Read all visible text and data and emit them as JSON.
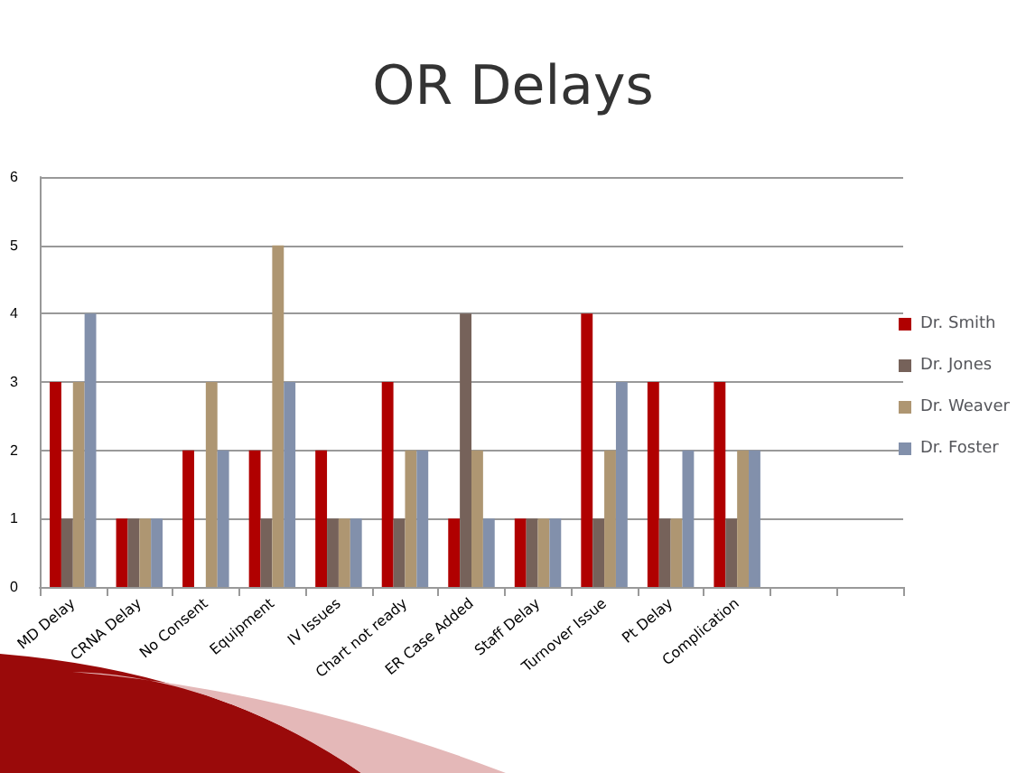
{
  "chart_data": {
    "type": "bar",
    "title": "OR Delays",
    "categories": [
      "MD Delay",
      "CRNA Delay",
      "No Consent",
      "Equipment",
      "IV Issues",
      "Chart not ready",
      "ER Case Added",
      "Staff Delay",
      "Turnover Issue",
      "Pt Delay",
      "Complication",
      null,
      null
    ],
    "series": [
      {
        "name": "Dr. Smith",
        "color": "#b00000",
        "values": [
          3,
          1,
          2,
          2,
          2,
          3,
          1,
          1,
          4,
          3,
          3,
          null,
          null
        ]
      },
      {
        "name": "Dr. Jones",
        "color": "#76625a",
        "values": [
          1,
          1,
          0,
          1,
          1,
          1,
          4,
          1,
          1,
          1,
          1,
          null,
          null
        ]
      },
      {
        "name": "Dr. Weaver",
        "color": "#ae9672",
        "values": [
          3,
          1,
          3,
          5,
          1,
          2,
          2,
          1,
          2,
          1,
          2,
          null,
          null
        ]
      },
      {
        "name": "Dr. Foster",
        "color": "#8290ab",
        "values": [
          4,
          1,
          2,
          3,
          1,
          2,
          1,
          1,
          3,
          2,
          2,
          null,
          null
        ]
      }
    ],
    "ylim": [
      0,
      6
    ],
    "yticks": [
      0,
      1,
      2,
      3,
      4,
      5,
      6
    ],
    "grid": "y",
    "legend": "right"
  }
}
